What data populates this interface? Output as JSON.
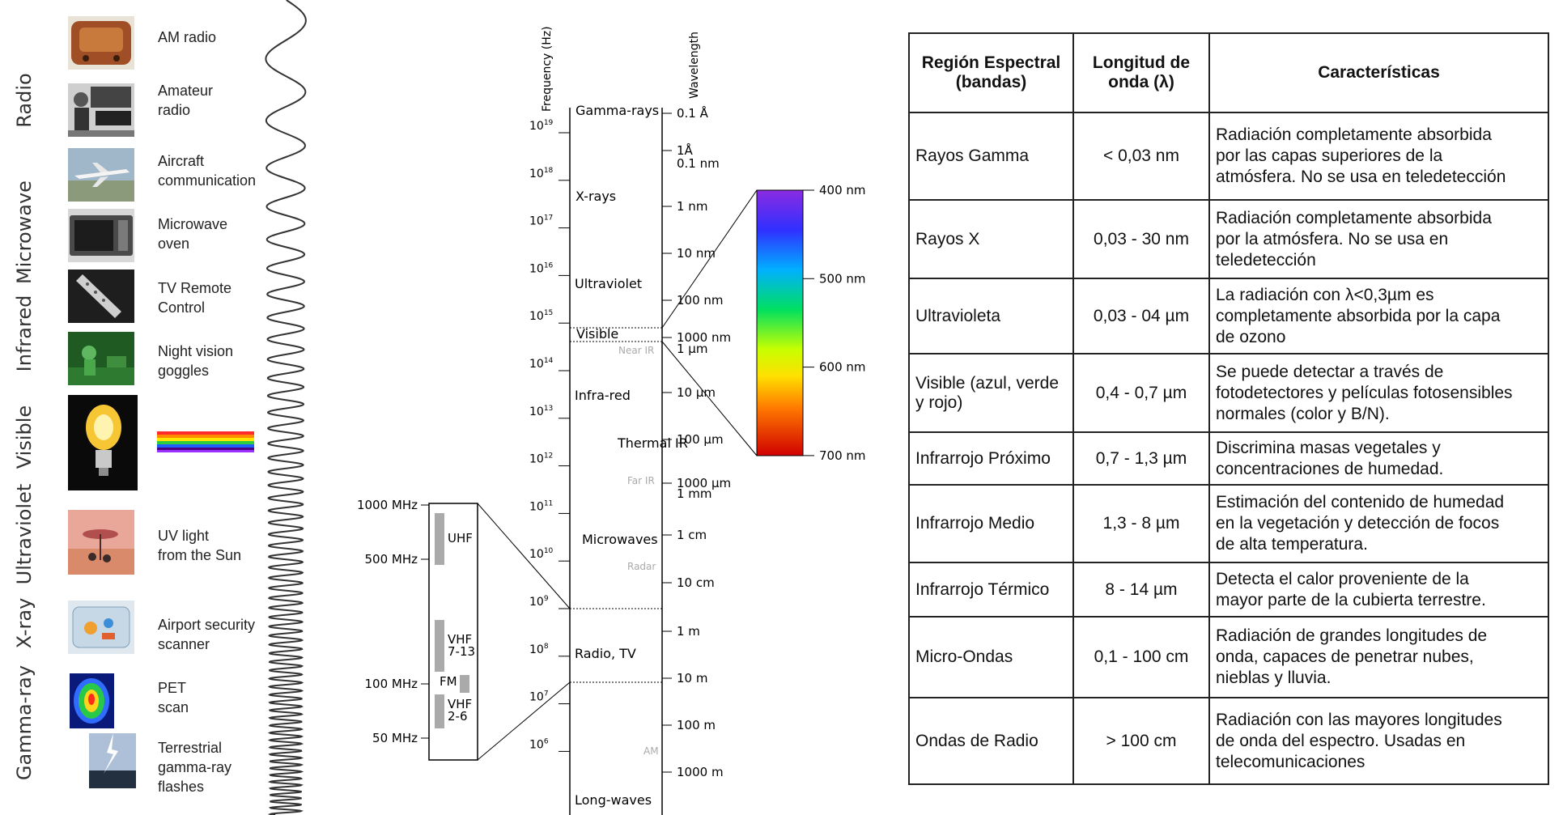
{
  "bands": [
    {
      "id": "radio",
      "label": "Radio"
    },
    {
      "id": "microwave",
      "label": "Microwave"
    },
    {
      "id": "infrared",
      "label": "Infrared"
    },
    {
      "id": "visible",
      "label": "Visible"
    },
    {
      "id": "ultraviolet",
      "label": "Ultraviolet"
    },
    {
      "id": "xray",
      "label": "X-ray"
    },
    {
      "id": "gamma",
      "label": "Gamma-ray"
    }
  ],
  "sources": [
    {
      "label": "AM radio",
      "icon": "am-radio-photo"
    },
    {
      "label": "Amateur\nradio",
      "icon": "amateur-radio-photo"
    },
    {
      "label": "Aircraft\ncommunication",
      "icon": "aircraft-photo"
    },
    {
      "label": "Microwave\noven",
      "icon": "microwave-oven-photo"
    },
    {
      "label": "TV Remote\nControl",
      "icon": "tv-remote-photo"
    },
    {
      "label": "Night vision\ngoggles",
      "icon": "night-vision-photo"
    },
    {
      "label": "",
      "icon": "light-bulb-photo"
    },
    {
      "label": "UV light\nfrom the Sun",
      "icon": "uv-sun-photo"
    },
    {
      "label": "Airport security\nscanner",
      "icon": "airport-scanner-photo"
    },
    {
      "label": "PET\nscan",
      "icon": "pet-scan-photo"
    },
    {
      "label": "Terrestrial\ngamma-ray\nflashes",
      "icon": "lightning-photo"
    }
  ],
  "scale": {
    "frequency_axis_title": "Frequency (Hz)",
    "wavelength_axis_title": "Wavelength",
    "frequency_ticks": [
      {
        "base": "10",
        "exp": "19"
      },
      {
        "base": "10",
        "exp": "18"
      },
      {
        "base": "10",
        "exp": "17"
      },
      {
        "base": "10",
        "exp": "16"
      },
      {
        "base": "10",
        "exp": "15"
      },
      {
        "base": "10",
        "exp": "14"
      },
      {
        "base": "10",
        "exp": "13"
      },
      {
        "base": "10",
        "exp": "12"
      },
      {
        "base": "10",
        "exp": "11"
      },
      {
        "base": "10",
        "exp": "10"
      },
      {
        "base": "10",
        "exp": "9"
      },
      {
        "base": "10",
        "exp": "8"
      },
      {
        "base": "10",
        "exp": "7"
      },
      {
        "base": "10",
        "exp": "6"
      }
    ],
    "regions": [
      {
        "label": "Gamma-rays",
        "dim": false
      },
      {
        "label": "X-rays",
        "dim": false
      },
      {
        "label": "Ultraviolet",
        "dim": false
      },
      {
        "label": "Visible",
        "dim": false
      },
      {
        "label": "Near IR",
        "dim": true
      },
      {
        "label": "Infra-red",
        "dim": false
      },
      {
        "label": "Thermal IR",
        "dim": false
      },
      {
        "label": "Far IR",
        "dim": true
      },
      {
        "label": "Microwaves",
        "dim": false
      },
      {
        "label": "Radar",
        "dim": true
      },
      {
        "label": "Radio, TV",
        "dim": false
      },
      {
        "label": "AM",
        "dim": true
      },
      {
        "label": "Long-waves",
        "dim": false
      }
    ],
    "wavelength_ticks": [
      "0.1 Å",
      "1Å",
      "0.1 nm",
      "1 nm",
      "10 nm",
      "100 nm",
      "1000 nm",
      "1 μm",
      "10 μm",
      "100 μm",
      "1000 μm",
      "1 mm",
      "1 cm",
      "10 cm",
      "1 m",
      "10 m",
      "100 m",
      "1000 m"
    ],
    "visible_ticks": [
      "400 nm",
      "500 nm",
      "600 nm",
      "700 nm"
    ],
    "broadcast_ticks": [
      "1000 MHz",
      "500 MHz",
      "100 MHz",
      "50 MHz"
    ],
    "broadcast_bands": [
      {
        "label": "UHF"
      },
      {
        "label": "VHF\n7-13"
      },
      {
        "label": "FM"
      },
      {
        "label": "VHF\n2-6"
      }
    ]
  },
  "table": {
    "headers": [
      "Región Espectral\n(bandas)",
      "Longitud de\nonda (λ)",
      "Características"
    ],
    "rows": [
      {
        "region": "Rayos Gamma",
        "longitud": "< 0,03 nm",
        "caracteristicas": "Radiación completamente absorbida\npor las capas superiores de la\natmósfera. No se usa en teledetección"
      },
      {
        "region": "Rayos X",
        "longitud": "0,03 - 30 nm",
        "caracteristicas": "Radiación completamente absorbida\npor la atmósfera. No se usa en\nteledetección"
      },
      {
        "region": "Ultravioleta",
        "longitud": "0,03 - 04 µm",
        "caracteristicas": "La radiación con λ<0,3µm es\ncompletamente absorbida por la capa\nde ozono"
      },
      {
        "region": "Visible (azul, verde\ny rojo)",
        "longitud": "0,4 - 0,7 µm",
        "caracteristicas": "Se puede detectar a través de\nfotodetectores y películas fotosensibles\nnormales (color y B/N)."
      },
      {
        "region": "Infrarrojo Próximo",
        "longitud": "0,7 - 1,3 µm",
        "caracteristicas": "Discrimina masas vegetales y\nconcentraciones de humedad."
      },
      {
        "region": "Infrarrojo Medio",
        "longitud": "1,3 - 8 µm",
        "caracteristicas": "Estimación del contenido de humedad\nen la vegetación y detección de focos\nde alta temperatura."
      },
      {
        "region": "Infrarrojo Térmico",
        "longitud": "8 - 14 µm",
        "caracteristicas": "Detecta el calor proveniente de la\nmayor parte de la cubierta terrestre."
      },
      {
        "region": "Micro-Ondas",
        "longitud": "0,1 - 100 cm",
        "caracteristicas": "Radiación de grandes longitudes de\nonda, capaces de penetrar nubes,\nnieblas y lluvia."
      },
      {
        "region": "Ondas de Radio",
        "longitud": "> 100 cm",
        "caracteristicas": "Radiación con las mayores longitudes\nde onda del espectro. Usadas en\ntelecomunicaciones"
      }
    ]
  }
}
